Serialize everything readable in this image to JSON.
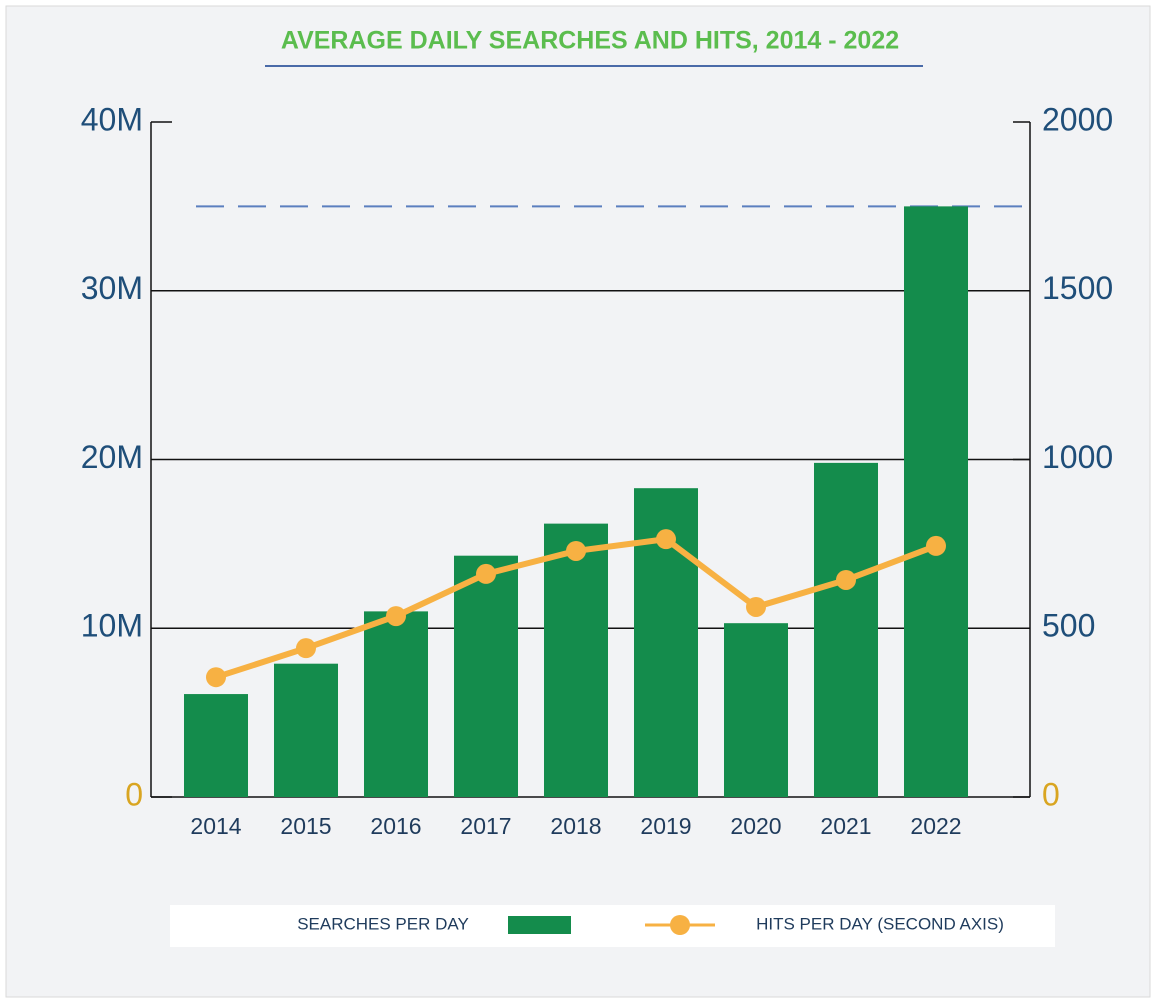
{
  "chart_data": {
    "type": "bar_line",
    "title": "AVERAGE DAILY SEARCHES AND HITS, 2014 - 2022",
    "categories": [
      "2014",
      "2015",
      "2016",
      "2017",
      "2018",
      "2019",
      "2020",
      "2021",
      "2022"
    ],
    "series": [
      {
        "name": "SEARCHES PER DAY",
        "type": "bar",
        "color": "#148c4c",
        "values": [
          6100000,
          7900000,
          11000000,
          14300000,
          16200000,
          18300000,
          10300000,
          19800000,
          35000000
        ]
      },
      {
        "name": "HITS PER DAY (SECOND AXIS)",
        "type": "line",
        "color": "#f7b143",
        "axis": "y2",
        "values": [
          355,
          441,
          536,
          661,
          729,
          764,
          563,
          643,
          744
        ]
      }
    ],
    "ylim": [
      0,
      40000000
    ],
    "yticks": [
      0,
      {
        "value": 10000000,
        "label": "10M"
      },
      {
        "value": 20000000,
        "label": "20M"
      },
      {
        "value": 30000000,
        "label": "30M"
      },
      {
        "value": 40000000,
        "label": "40M"
      }
    ],
    "y2lim": [
      0,
      2000
    ],
    "y2ticks": [
      0,
      500,
      1000,
      1500,
      2000
    ],
    "reference_line": {
      "value": 35000000,
      "color": "#5b7fbf"
    },
    "grid": true,
    "legend": "bottom"
  }
}
